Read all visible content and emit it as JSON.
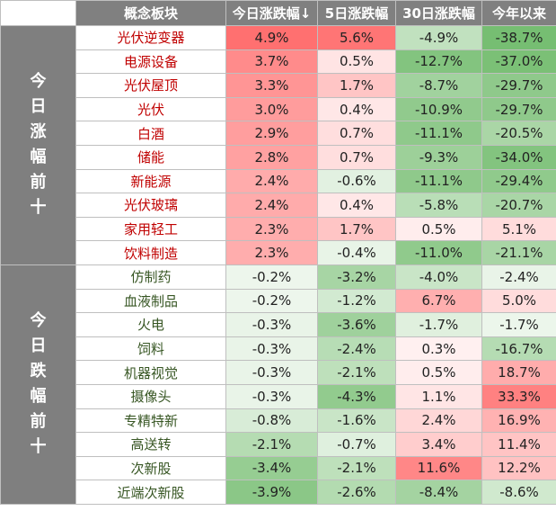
{
  "table": {
    "headers": [
      "概念板块",
      "今日涨跌幅↓",
      "5日涨跌幅",
      "30日涨跌幅",
      "今年以来"
    ],
    "top_label": "今日涨幅前十",
    "bottom_label": "今日跌幅前十",
    "colors": {
      "top_name": "#c00000",
      "bottom_name": "#375623",
      "header_bg": "#808080",
      "group_bg": "#7f7f7f"
    },
    "top_rows": [
      {
        "name": "光伏逆变器",
        "today": "4.9%",
        "d5": "5.6%",
        "d30": "-4.9%",
        "ytd": "-38.7%"
      },
      {
        "name": "电源设备",
        "today": "3.7%",
        "d5": "0.5%",
        "d30": "-12.7%",
        "ytd": "-37.0%"
      },
      {
        "name": "光伏屋顶",
        "today": "3.3%",
        "d5": "1.7%",
        "d30": "-8.7%",
        "ytd": "-29.7%"
      },
      {
        "name": "光伏",
        "today": "3.0%",
        "d5": "0.4%",
        "d30": "-10.9%",
        "ytd": "-29.7%"
      },
      {
        "name": "白酒",
        "today": "2.9%",
        "d5": "0.7%",
        "d30": "-11.1%",
        "ytd": "-20.5%"
      },
      {
        "name": "储能",
        "today": "2.8%",
        "d5": "0.7%",
        "d30": "-9.3%",
        "ytd": "-34.0%"
      },
      {
        "name": "新能源",
        "today": "2.4%",
        "d5": "-0.6%",
        "d30": "-11.1%",
        "ytd": "-29.4%"
      },
      {
        "name": "光伏玻璃",
        "today": "2.4%",
        "d5": "0.4%",
        "d30": "-5.8%",
        "ytd": "-20.7%"
      },
      {
        "name": "家用轻工",
        "today": "2.3%",
        "d5": "1.7%",
        "d30": "0.5%",
        "ytd": "5.1%"
      },
      {
        "name": "饮料制造",
        "today": "2.3%",
        "d5": "-0.4%",
        "d30": "-11.0%",
        "ytd": "-21.1%"
      }
    ],
    "bottom_rows": [
      {
        "name": "仿制药",
        "today": "-0.2%",
        "d5": "-3.2%",
        "d30": "-4.0%",
        "ytd": "-2.4%"
      },
      {
        "name": "血液制品",
        "today": "-0.2%",
        "d5": "-1.2%",
        "d30": "6.7%",
        "ytd": "5.0%"
      },
      {
        "name": "火电",
        "today": "-0.3%",
        "d5": "-3.6%",
        "d30": "-1.7%",
        "ytd": "-1.7%"
      },
      {
        "name": "饲料",
        "today": "-0.3%",
        "d5": "-2.4%",
        "d30": "0.3%",
        "ytd": "-16.7%"
      },
      {
        "name": "机器视觉",
        "today": "-0.3%",
        "d5": "-2.1%",
        "d30": "0.5%",
        "ytd": "18.7%"
      },
      {
        "name": "摄像头",
        "today": "-0.3%",
        "d5": "-4.3%",
        "d30": "1.1%",
        "ytd": "33.3%"
      },
      {
        "name": "专精特新",
        "today": "-0.8%",
        "d5": "-1.6%",
        "d30": "2.4%",
        "ytd": "16.9%"
      },
      {
        "name": "高送转",
        "today": "-2.1%",
        "d5": "-0.7%",
        "d30": "3.4%",
        "ytd": "11.4%"
      },
      {
        "name": "次新股",
        "today": "-3.4%",
        "d5": "-2.1%",
        "d30": "11.6%",
        "ytd": "12.2%"
      },
      {
        "name": "近端次新股",
        "today": "-3.9%",
        "d5": "-2.6%",
        "d30": "-8.4%",
        "ytd": "-8.6%"
      }
    ]
  }
}
